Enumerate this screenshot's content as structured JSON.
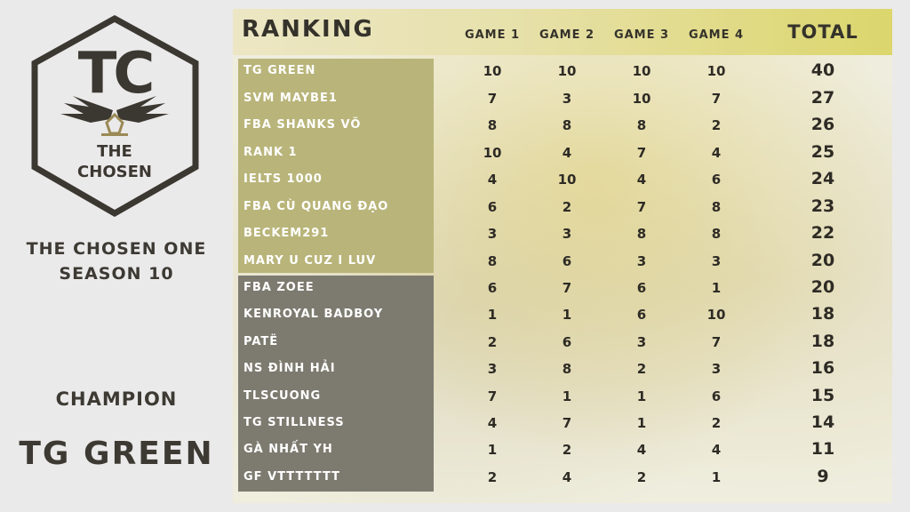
{
  "logo": {
    "letters": "TC",
    "line1": "THE",
    "line2": "CHOSEN"
  },
  "event": {
    "title_line1": "THE CHOSEN ONE",
    "title_line2": "SEASON 10"
  },
  "champion": {
    "label": "CHAMPION",
    "name": "TG GREEN"
  },
  "table": {
    "title": "RANKING",
    "columns": [
      "GAME 1",
      "GAME 2",
      "GAME 3",
      "GAME 4"
    ],
    "total_label": "TOTAL",
    "rows": [
      {
        "name": "TG GREEN",
        "games": [
          "10",
          "10",
          "10",
          "10"
        ],
        "total": "40"
      },
      {
        "name": "SVM MAYBE1",
        "games": [
          "7",
          "3",
          "10",
          "7"
        ],
        "total": "27"
      },
      {
        "name": "FBA SHANKS VÕ",
        "games": [
          "8",
          "8",
          "8",
          "2"
        ],
        "total": "26"
      },
      {
        "name": "RANK 1",
        "games": [
          "10",
          "4",
          "7",
          "4"
        ],
        "total": "25"
      },
      {
        "name": "IELTS 1000",
        "games": [
          "4",
          "10",
          "4",
          "6"
        ],
        "total": "24"
      },
      {
        "name": "FBA CÙ QUANG ĐẠO",
        "games": [
          "6",
          "2",
          "7",
          "8"
        ],
        "total": "23"
      },
      {
        "name": "BECKEM291",
        "games": [
          "3",
          "3",
          "8",
          "8"
        ],
        "total": "22"
      },
      {
        "name": "MARY U CUZ I LUV",
        "games": [
          "8",
          "6",
          "3",
          "3"
        ],
        "total": "20"
      },
      {
        "name": "FBA ZOEE",
        "games": [
          "6",
          "7",
          "6",
          "1"
        ],
        "total": "20"
      },
      {
        "name": "KENROYAL BADBOY",
        "games": [
          "1",
          "1",
          "6",
          "10"
        ],
        "total": "18"
      },
      {
        "name": "PATË",
        "games": [
          "2",
          "6",
          "3",
          "7"
        ],
        "total": "18"
      },
      {
        "name": "NS ĐÌNH HẢI",
        "games": [
          "3",
          "8",
          "2",
          "3"
        ],
        "total": "16"
      },
      {
        "name": "TLSCUONG",
        "games": [
          "7",
          "1",
          "1",
          "6"
        ],
        "total": "15"
      },
      {
        "name": "TG STILLNESS",
        "games": [
          "4",
          "7",
          "1",
          "2"
        ],
        "total": "14"
      },
      {
        "name": "GÀ NHẤT YH",
        "games": [
          "1",
          "2",
          "4",
          "4"
        ],
        "total": "11"
      },
      {
        "name": "GF VTTTTTTT",
        "games": [
          "2",
          "4",
          "2",
          "1"
        ],
        "total": "9"
      }
    ]
  },
  "colors": {
    "top_group": "#b9b57a",
    "bottom_group": "#7d7b70",
    "header_accent": "#dcd66d",
    "text_dark": "#35322b"
  }
}
